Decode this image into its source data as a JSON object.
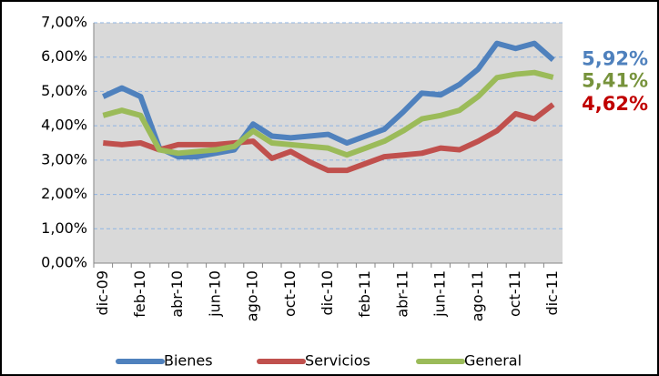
{
  "chart_data": {
    "type": "line",
    "categories": [
      "dic-09",
      null,
      "feb-10",
      null,
      "abr-10",
      null,
      "jun-10",
      null,
      "ago-10",
      null,
      "oct-10",
      null,
      "dic-10",
      null,
      "feb-11",
      null,
      "abr-11",
      null,
      "jun-11",
      null,
      "ago-11",
      null,
      "oct-11",
      null,
      "dic-11"
    ],
    "series": [
      {
        "name": "Bienes",
        "color": "#4f81bd",
        "label_color": "#4f81bd",
        "values": [
          4.85,
          5.1,
          4.85,
          3.35,
          3.1,
          3.1,
          3.2,
          3.3,
          4.05,
          3.7,
          3.65,
          3.7,
          3.75,
          3.5,
          3.7,
          3.9,
          4.4,
          4.95,
          4.9,
          5.2,
          5.65,
          6.4,
          6.25,
          6.4,
          5.92
        ],
        "value_labels": [
          null,
          null,
          null,
          null,
          null,
          null,
          null,
          null,
          null,
          null,
          null,
          null,
          null,
          null,
          null,
          null,
          null,
          null,
          null,
          null,
          null,
          null,
          null,
          null,
          "5,92%"
        ]
      },
      {
        "name": "Servicios",
        "color": "#c0504d",
        "label_color": "#c00000",
        "values": [
          3.5,
          3.45,
          3.5,
          3.3,
          3.45,
          3.45,
          3.45,
          3.5,
          3.55,
          3.05,
          3.25,
          2.95,
          2.7,
          2.7,
          2.9,
          3.1,
          3.15,
          3.2,
          3.35,
          3.3,
          3.55,
          3.85,
          4.35,
          4.2,
          4.62
        ],
        "value_labels": [
          null,
          null,
          null,
          null,
          null,
          null,
          null,
          null,
          null,
          null,
          null,
          null,
          null,
          null,
          null,
          null,
          null,
          null,
          null,
          null,
          null,
          null,
          null,
          null,
          "4,62%"
        ]
      },
      {
        "name": "General",
        "color": "#9bbb59",
        "label_color": "#77933c",
        "values": [
          4.3,
          4.45,
          4.3,
          3.3,
          3.2,
          3.25,
          3.3,
          3.4,
          3.85,
          3.5,
          3.45,
          3.4,
          3.35,
          3.15,
          3.35,
          3.55,
          3.85,
          4.2,
          4.3,
          4.45,
          4.85,
          5.4,
          5.5,
          5.55,
          5.41
        ],
        "value_labels": [
          null,
          null,
          null,
          null,
          null,
          null,
          null,
          null,
          null,
          null,
          null,
          null,
          null,
          null,
          null,
          null,
          null,
          null,
          null,
          null,
          null,
          null,
          null,
          null,
          "5,41%"
        ]
      }
    ],
    "ylim": [
      0,
      7
    ],
    "yticks": [
      {
        "value": 0,
        "label": "0,00%"
      },
      {
        "value": 1,
        "label": "1,00%"
      },
      {
        "value": 2,
        "label": "2,00%"
      },
      {
        "value": 3,
        "label": "3,00%"
      },
      {
        "value": 4,
        "label": "4,00%"
      },
      {
        "value": 5,
        "label": "5,00%"
      },
      {
        "value": 6,
        "label": "6,00%"
      },
      {
        "value": 7,
        "label": "7,00%"
      }
    ],
    "grid": true,
    "plot_background": "#d9d9d9",
    "legend": "bottom"
  }
}
